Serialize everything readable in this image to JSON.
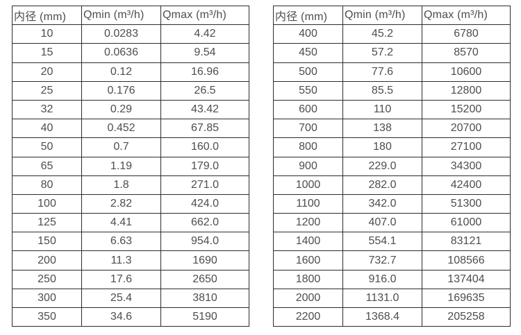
{
  "page": {
    "background_color": "#ffffff",
    "text_color": "#4d4d4d",
    "border_color": "#2b2b2b"
  },
  "tables": [
    {
      "title": "flow-spec-table-small-diameters",
      "headers": [
        "内径 (mm)",
        "Qmin (m³/h)",
        "Qmax (m³/h)"
      ],
      "rows": [
        [
          "10",
          "0.0283",
          "4.42"
        ],
        [
          "15",
          "0.0636",
          "9.54"
        ],
        [
          "20",
          "0.12",
          "16.96"
        ],
        [
          "25",
          "0.176",
          "26.5"
        ],
        [
          "32",
          "0.29",
          "43.42"
        ],
        [
          "40",
          "0.452",
          "67.85"
        ],
        [
          "50",
          "0.7",
          "160.0"
        ],
        [
          "65",
          "1.19",
          "179.0"
        ],
        [
          "80",
          "1.8",
          "271.0"
        ],
        [
          "100",
          "2.82",
          "424.0"
        ],
        [
          "125",
          "4.41",
          "662.0"
        ],
        [
          "150",
          "6.63",
          "954.0"
        ],
        [
          "200",
          "11.3",
          "1690"
        ],
        [
          "250",
          "17.6",
          "2650"
        ],
        [
          "300",
          "25.4",
          "3810"
        ],
        [
          "350",
          "34.6",
          "5190"
        ]
      ]
    },
    {
      "title": "flow-spec-table-large-diameters",
      "headers": [
        "内径 (mm)",
        "Qmin (m³/h)",
        "Qmax (m³/h)"
      ],
      "rows": [
        [
          "400",
          "45.2",
          "6780"
        ],
        [
          "450",
          "57.2",
          "8570"
        ],
        [
          "500",
          "77.6",
          "10600"
        ],
        [
          "550",
          "85.5",
          "12800"
        ],
        [
          "600",
          "110",
          "15200"
        ],
        [
          "700",
          "138",
          "20700"
        ],
        [
          "800",
          "180",
          "27100"
        ],
        [
          "900",
          "229.0",
          "34300"
        ],
        [
          "1000",
          "282.0",
          "42400"
        ],
        [
          "1100",
          "342.0",
          "51300"
        ],
        [
          "1200",
          "407.0",
          "61000"
        ],
        [
          "1400",
          "554.1",
          "83121"
        ],
        [
          "1600",
          "732.7",
          "108566"
        ],
        [
          "1800",
          "916.0",
          "137404"
        ],
        [
          "2000",
          "1131.0",
          "169635"
        ],
        [
          "2200",
          "1368.4",
          "205258"
        ]
      ]
    }
  ]
}
